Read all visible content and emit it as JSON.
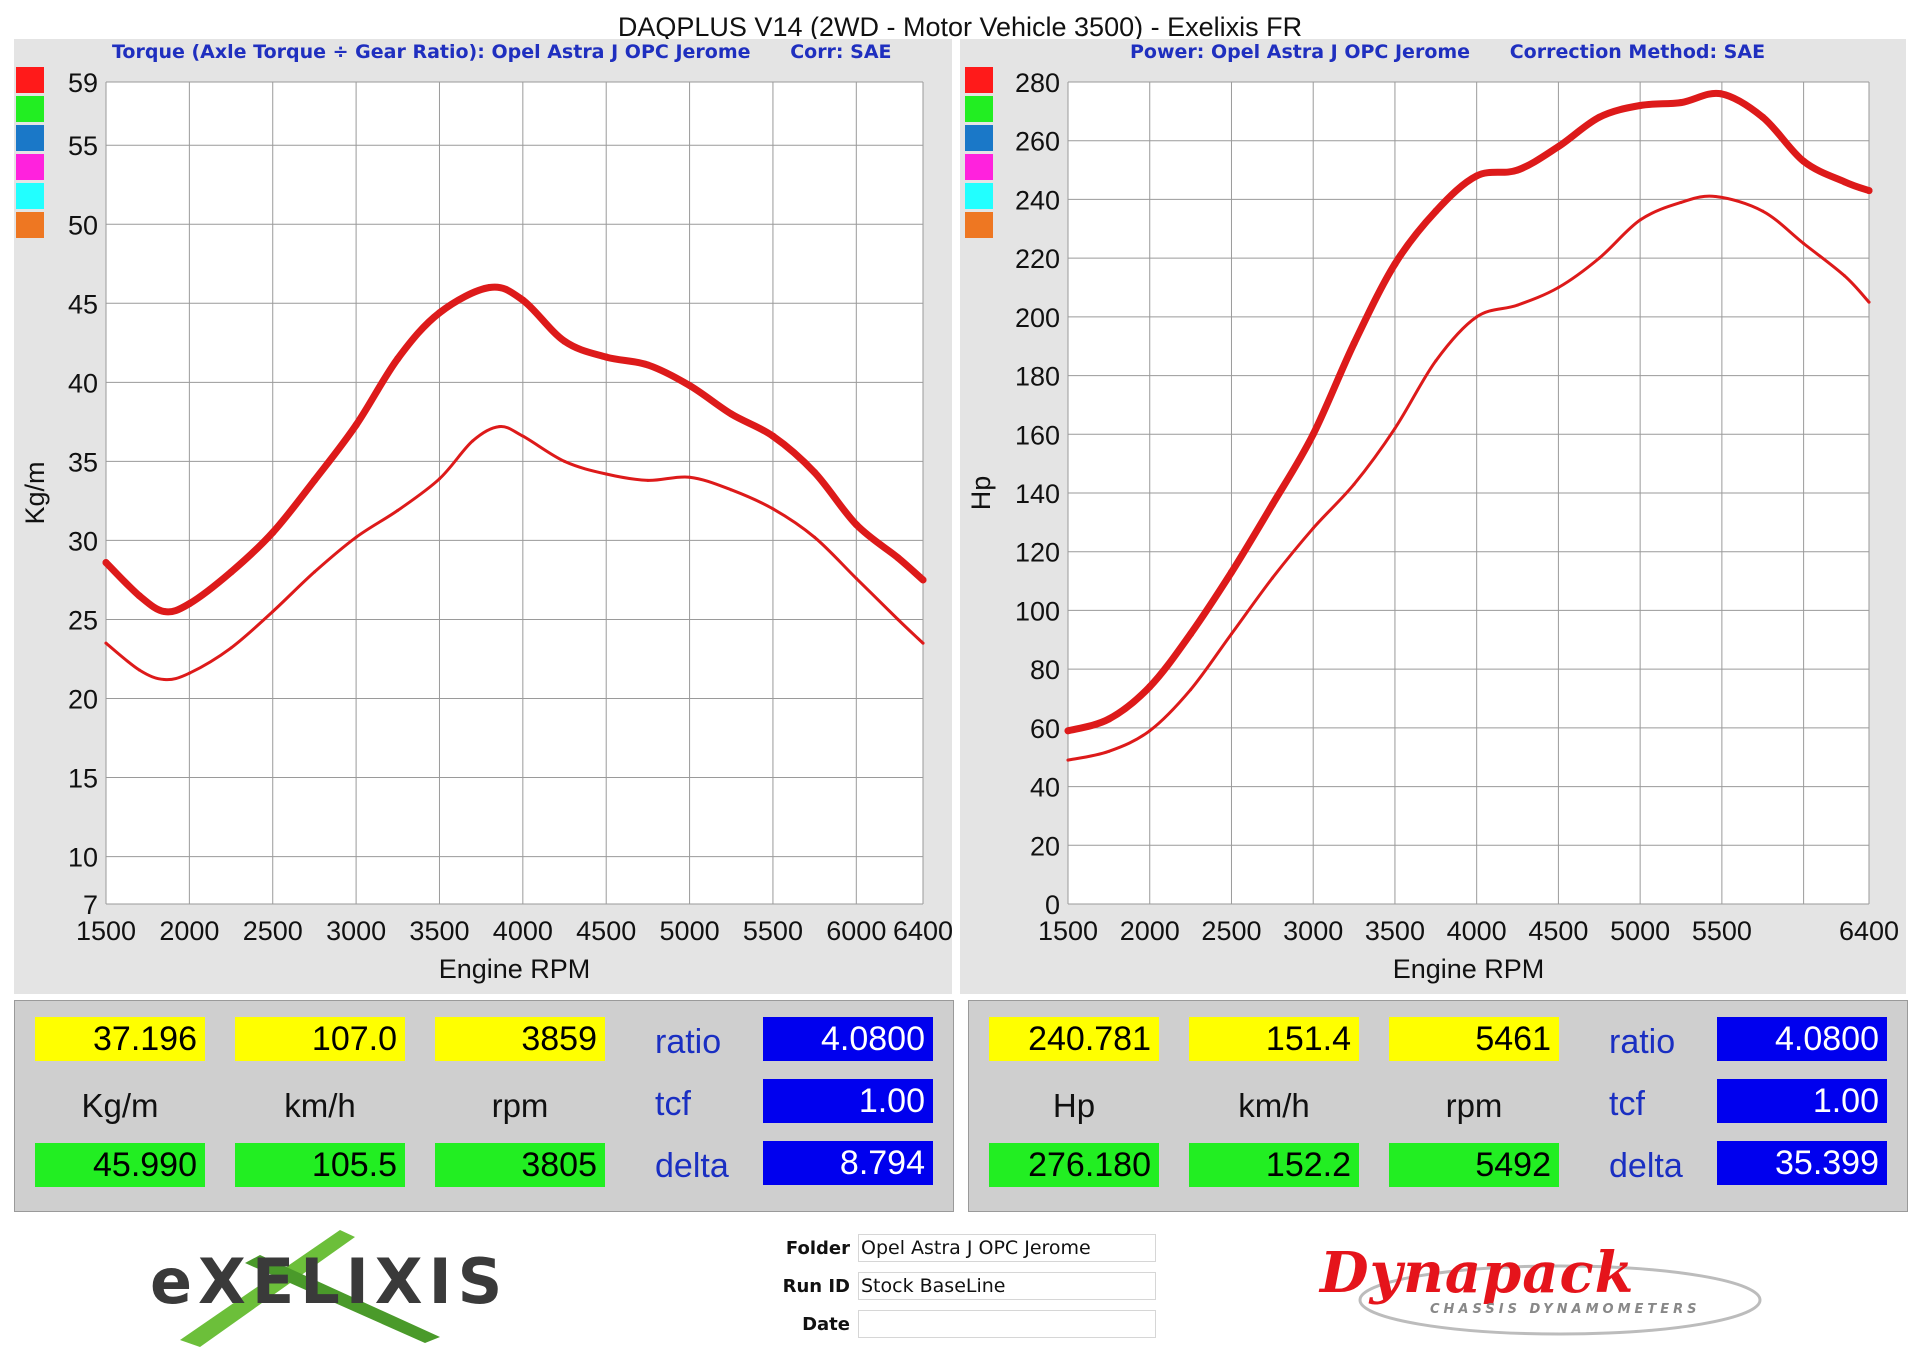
{
  "title": "DAQPLUS V14 (2WD - Motor Vehicle 3500) - Exelixis FR",
  "colors": {
    "curve": "#dd1a1a",
    "swatches": [
      "#ff1a1a",
      "#22ee22",
      "#1a78c8",
      "#ff22dd",
      "#22ffff",
      "#ee7722"
    ],
    "readout_yellow": "#ffff00",
    "readout_green": "#22ee22",
    "readout_blue": "#0000ee"
  },
  "chart_data": [
    {
      "type": "line",
      "title": "Torque (Axle Torque ÷ Gear Ratio): Opel Astra J OPC Jerome      Corr: SAE",
      "xlabel": "Engine RPM",
      "ylabel": "Kg/m",
      "xlim": [
        1500,
        6400
      ],
      "ylim": [
        7,
        59
      ],
      "x_ticks": [
        1500,
        2000,
        2500,
        3000,
        3500,
        4000,
        4500,
        5000,
        5500,
        6000,
        6400
      ],
      "x_tick_labels": [
        "1500",
        "2000",
        "2500",
        "3000",
        "3500",
        "4000",
        "4500",
        "5000",
        "5500",
        "6000",
        "6400"
      ],
      "y_ticks": [
        7,
        10,
        15,
        20,
        25,
        30,
        35,
        40,
        45,
        50,
        55,
        59
      ],
      "y_tick_labels": [
        "7",
        "10",
        "15",
        "20",
        "25",
        "30",
        "35",
        "40",
        "45",
        "50",
        "55",
        "59"
      ],
      "grid": true,
      "series": [
        {
          "x": [
            1500,
            1700,
            1850,
            2000,
            2250,
            2500,
            2750,
            3000,
            3250,
            3500,
            3800,
            4000,
            4250,
            4500,
            4750,
            5000,
            5250,
            5500,
            5750,
            6000,
            6250,
            6400
          ],
          "values": [
            28.6,
            26.5,
            25.5,
            26.0,
            28.0,
            30.5,
            33.8,
            37.3,
            41.5,
            44.4,
            46.0,
            45.2,
            42.6,
            41.6,
            41.1,
            39.8,
            38.0,
            36.6,
            34.3,
            31.0,
            28.9,
            27.5
          ],
          "style": "thick"
        },
        {
          "x": [
            1500,
            1700,
            1850,
            2000,
            2250,
            2500,
            2750,
            3000,
            3250,
            3500,
            3700,
            3859,
            4000,
            4250,
            4500,
            4750,
            5000,
            5250,
            5500,
            5750,
            6000,
            6250,
            6400
          ],
          "values": [
            23.5,
            21.8,
            21.2,
            21.6,
            23.2,
            25.5,
            28.0,
            30.2,
            31.9,
            33.9,
            36.3,
            37.2,
            36.6,
            35.0,
            34.2,
            33.8,
            34.0,
            33.2,
            32.0,
            30.2,
            27.6,
            25.0,
            23.5
          ],
          "style": "thin"
        }
      ]
    },
    {
      "type": "line",
      "title": "Power: Opel Astra J OPC Jerome      Correction Method: SAE",
      "xlabel": "Engine RPM",
      "ylabel": "Hp",
      "xlim": [
        1500,
        6400
      ],
      "ylim": [
        0,
        280
      ],
      "x_ticks": [
        1500,
        2000,
        2500,
        3000,
        3500,
        4000,
        4500,
        5000,
        5500,
        6400
      ],
      "x_tick_labels": [
        "1500",
        "2000",
        "2500",
        "3000",
        "3500",
        "4000",
        "4500",
        "5000",
        "5500",
        "6400"
      ],
      "grid_x": [
        1500,
        2000,
        2500,
        3000,
        3500,
        4000,
        4500,
        5000,
        5500,
        6000,
        6400
      ],
      "y_ticks": [
        0,
        20,
        40,
        60,
        80,
        100,
        120,
        140,
        160,
        180,
        200,
        220,
        240,
        260,
        280
      ],
      "y_tick_labels": [
        "0",
        "20",
        "40",
        "60",
        "80",
        "100",
        "120",
        "140",
        "160",
        "180",
        "200",
        "220",
        "240",
        "260",
        "280"
      ],
      "grid": true,
      "series": [
        {
          "x": [
            1500,
            1750,
            2000,
            2250,
            2500,
            2750,
            3000,
            3250,
            3500,
            3750,
            4000,
            4250,
            4500,
            4750,
            5000,
            5250,
            5492,
            5750,
            6000,
            6250,
            6400
          ],
          "values": [
            59,
            63,
            74,
            92,
            113,
            136,
            160,
            191,
            218,
            236,
            248,
            250,
            258,
            268,
            272,
            273,
            276,
            268,
            253,
            246,
            243
          ],
          "style": "thick"
        },
        {
          "x": [
            1500,
            1750,
            2000,
            2250,
            2500,
            2750,
            3000,
            3250,
            3500,
            3750,
            4000,
            4250,
            4500,
            4750,
            5000,
            5250,
            5461,
            5750,
            6000,
            6250,
            6400
          ],
          "values": [
            49,
            52,
            59,
            73,
            92,
            111,
            128,
            143,
            162,
            185,
            200,
            204,
            210,
            220,
            233,
            239,
            241,
            236,
            225,
            214,
            205
          ],
          "style": "thin"
        }
      ]
    }
  ],
  "readouts": [
    {
      "yellow": [
        "37.196",
        "107.0",
        "3859"
      ],
      "units": [
        "Kg/m",
        "km/h",
        "rpm"
      ],
      "green": [
        "45.990",
        "105.5",
        "3805"
      ],
      "labels": [
        "ratio",
        "tcf",
        "delta"
      ],
      "blue": [
        "4.0800",
        "1.00",
        "8.794"
      ]
    },
    {
      "yellow": [
        "240.781",
        "151.4",
        "5461"
      ],
      "units": [
        "Hp",
        "km/h",
        "rpm"
      ],
      "green": [
        "276.180",
        "152.2",
        "5492"
      ],
      "labels": [
        "ratio",
        "tcf",
        "delta"
      ],
      "blue": [
        "4.0800",
        "1.00",
        "35.399"
      ]
    }
  ],
  "footer": {
    "exelixis_logo": "eXELIXIS",
    "dynapack_logo": "Dynapack",
    "dynapack_sub": "CHASSIS DYNAMOMETERS",
    "fields": [
      {
        "label": "Folder",
        "value": "Opel Astra J OPC Jerome"
      },
      {
        "label": "Run ID",
        "value": "Stock BaseLine"
      },
      {
        "label": "Date",
        "value": ""
      }
    ]
  }
}
